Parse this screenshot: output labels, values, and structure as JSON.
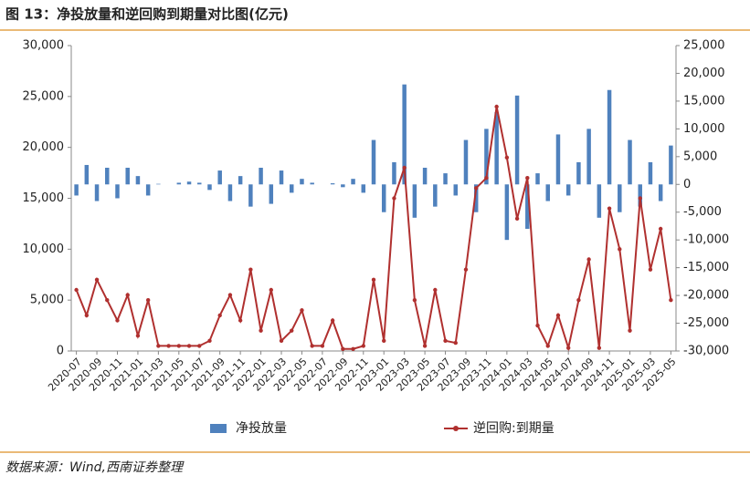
{
  "header": {
    "title": "图 13：净投放量和逆回购到期量对比图(亿元)"
  },
  "chart_data": {
    "type": "combo",
    "categories": [
      "2020-07",
      null,
      "2020-09",
      null,
      "2020-11",
      null,
      "2021-01",
      null,
      "2021-03",
      null,
      "2021-05",
      null,
      "2021-07",
      null,
      "2021-09",
      null,
      "2021-11",
      null,
      "2022-01",
      null,
      "2022-03",
      null,
      "2022-05",
      null,
      "2022-07",
      null,
      "2022-09",
      null,
      "2022-11",
      null,
      "2023-01",
      null,
      "2023-03",
      null,
      "2023-05",
      null,
      "2023-07",
      null,
      "2023-09",
      null,
      "2023-11",
      null,
      "2024-01",
      null,
      "2024-03",
      null,
      "2024-05",
      null,
      "2024-07",
      null,
      "2024-09",
      null,
      "2024-11",
      null,
      "2025-01",
      null,
      "2025-03",
      null,
      "2025-05"
    ],
    "series": [
      {
        "name": "净投放量",
        "type": "bar",
        "axis": "y2",
        "color": "#4f81bd",
        "values": [
          -2000,
          3500,
          -3000,
          3000,
          -2500,
          3000,
          1500,
          -2000,
          100,
          0,
          300,
          500,
          300,
          -1000,
          2500,
          -3000,
          1500,
          -4000,
          3000,
          -3500,
          2500,
          -1500,
          1000,
          300,
          0,
          200,
          -500,
          1000,
          -1500,
          8000,
          -5000,
          4000,
          18000,
          -6000,
          3000,
          -4000,
          2000,
          -2000,
          8000,
          -5000,
          10000,
          13000,
          -10000,
          16000,
          -8000,
          2000,
          -3000,
          9000,
          -2000,
          4000,
          10000,
          -6000,
          17000,
          -5000,
          8000,
          -4000,
          4000,
          -3000,
          7000
        ]
      },
      {
        "name": "逆回购:到期量",
        "type": "line",
        "axis": "y",
        "color": "#b0302f",
        "values": [
          6000,
          3500,
          7000,
          5000,
          3000,
          5500,
          1500,
          5000,
          500,
          500,
          500,
          500,
          500,
          1000,
          3500,
          5500,
          3000,
          8000,
          2000,
          6000,
          1000,
          2000,
          4000,
          500,
          500,
          3000,
          200,
          200,
          500,
          7000,
          1000,
          15000,
          18000,
          5000,
          500,
          6000,
          1000,
          800,
          8000,
          16000,
          17000,
          24000,
          19000,
          13000,
          17000,
          2500,
          500,
          3500,
          300,
          5000,
          9000,
          300,
          14000,
          10000,
          2000,
          15000,
          8000,
          12000,
          5000
        ]
      }
    ],
    "ylim": [
      0,
      30000
    ],
    "yticks": [
      0,
      {
        "value": 5000,
        "label": "5,000"
      },
      {
        "value": 10000,
        "label": "10,000"
      },
      {
        "value": 15000,
        "label": "15,000"
      },
      {
        "value": 20000,
        "label": "20,000"
      },
      {
        "value": 25000,
        "label": "25,000"
      },
      {
        "value": 30000,
        "label": "30,000"
      }
    ],
    "y2lim": [
      -30000,
      25000
    ],
    "y2ticks": [
      {
        "value": -30000,
        "label": "-30,000"
      },
      {
        "value": -25000,
        "label": "-25,000"
      },
      {
        "value": -20000,
        "label": "-20,000"
      },
      {
        "value": -15000,
        "label": "-15,000"
      },
      {
        "value": -10000,
        "label": "-10,000"
      },
      {
        "value": -5000,
        "label": "-5,000"
      },
      0,
      {
        "value": 5000,
        "label": "5,000"
      },
      {
        "value": 10000,
        "label": "10,000"
      },
      {
        "value": 15000,
        "label": "15,000"
      },
      {
        "value": 20000,
        "label": "20,000"
      },
      {
        "value": 25000,
        "label": "25,000"
      }
    ],
    "legend": "bottom"
  },
  "footer": {
    "source": "数据来源：Wind,西南证券整理"
  }
}
